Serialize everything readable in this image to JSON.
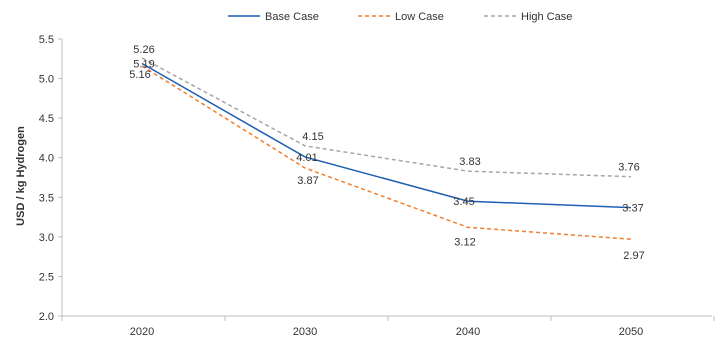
{
  "chart_data": {
    "type": "line",
    "title": "",
    "xlabel": "",
    "ylabel": "USD / kg Hydrogen",
    "categories": [
      "2020",
      "2030",
      "2040",
      "2050"
    ],
    "ylim": [
      2.0,
      5.5
    ],
    "yticks": [
      "2.0",
      "2.5",
      "3.0",
      "3.5",
      "4.0",
      "4.5",
      "5.0",
      "5.5"
    ],
    "grid": false,
    "legend_position": "top",
    "series": [
      {
        "name": "Base Case",
        "values": [
          5.19,
          4.01,
          3.45,
          3.37
        ],
        "labels": [
          "5.19",
          "4.01",
          "3.45",
          "3.37"
        ],
        "color": "#1f5fb3",
        "dash": "solid"
      },
      {
        "name": "Low Case",
        "values": [
          5.16,
          3.87,
          3.12,
          2.97
        ],
        "labels": [
          "5.16",
          "3.87",
          "3.12",
          "2.97"
        ],
        "color": "#f07f2e",
        "dash": "dashed"
      },
      {
        "name": "High Case",
        "values": [
          5.26,
          4.15,
          3.83,
          3.76
        ],
        "labels": [
          "5.26",
          "4.15",
          "3.83",
          "3.76"
        ],
        "color": "#a6a6a6",
        "dash": "dashed"
      }
    ]
  }
}
